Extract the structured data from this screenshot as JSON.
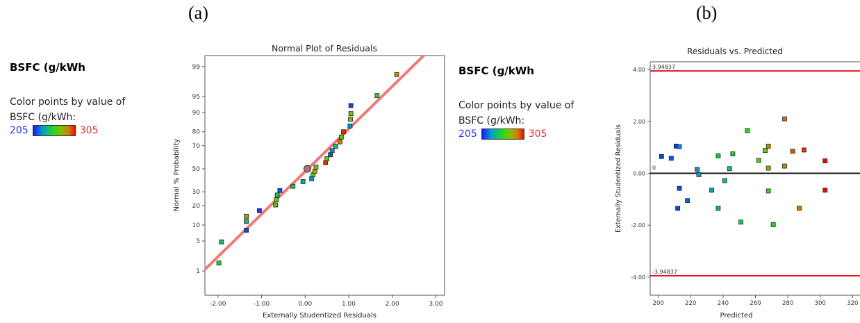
{
  "panel_labels": [
    "(a)",
    "(b)"
  ],
  "legend": {
    "title": "BSFC (g/kWh",
    "line1": "Color points by value of",
    "line2": "BSFC (g/kWh:",
    "min": "205",
    "max": "305"
  },
  "chart_data": [
    {
      "type": "scatter",
      "title": "Normal Plot of Residuals",
      "xlabel": "Externally Studentized Residuals",
      "ylabel": "Normal % Probability",
      "xlim": [
        -2.3,
        3.2
      ],
      "xticks": [
        "-2.00",
        "-1.00",
        "0.00",
        "1.00",
        "2.00",
        "3.00"
      ],
      "yticks": [
        "1",
        "5",
        "10",
        "20",
        "30",
        "50",
        "70",
        "80",
        "90",
        "95",
        "99"
      ],
      "y_scale": "normal-probability",
      "color_scale": {
        "min": 205,
        "max": 305
      },
      "fit_line": "normal reference line",
      "points": [
        {
          "x": -1.98,
          "y": 1.6,
          "c": 252
        },
        {
          "x": -1.92,
          "y": 4.8,
          "c": 240
        },
        {
          "x": -1.35,
          "y": 8.1,
          "c": 212
        },
        {
          "x": -1.35,
          "y": 11.5,
          "c": 238
        },
        {
          "x": -1.35,
          "y": 14.0,
          "c": 280
        },
        {
          "x": -1.05,
          "y": 17.0,
          "c": 210
        },
        {
          "x": -0.68,
          "y": 20.5,
          "c": 260
        },
        {
          "x": -0.66,
          "y": 24.0,
          "c": 270
        },
        {
          "x": -0.64,
          "y": 27.5,
          "c": 245
        },
        {
          "x": -0.58,
          "y": 31.0,
          "c": 215
        },
        {
          "x": -0.28,
          "y": 34.5,
          "c": 245
        },
        {
          "x": -0.05,
          "y": 38.5,
          "c": 230
        },
        {
          "x": 0.05,
          "y": 50.0,
          "c": 250
        },
        {
          "x": 0.15,
          "y": 41.0,
          "c": 225
        },
        {
          "x": 0.18,
          "y": 44.5,
          "c": 260
        },
        {
          "x": 0.22,
          "y": 47.5,
          "c": 280
        },
        {
          "x": 0.25,
          "y": 51.5,
          "c": 270
        },
        {
          "x": 0.47,
          "y": 55.5,
          "c": 300
        },
        {
          "x": 0.5,
          "y": 59.0,
          "c": 265
        },
        {
          "x": 0.58,
          "y": 62.5,
          "c": 215
        },
        {
          "x": 0.62,
          "y": 66.0,
          "c": 225
        },
        {
          "x": 0.7,
          "y": 69.5,
          "c": 240
        },
        {
          "x": 0.8,
          "y": 73.0,
          "c": 290
        },
        {
          "x": 0.83,
          "y": 76.5,
          "c": 260
        },
        {
          "x": 0.88,
          "y": 80.0,
          "c": 300
        },
        {
          "x": 1.03,
          "y": 83.5,
          "c": 225
        },
        {
          "x": 1.04,
          "y": 87.0,
          "c": 265
        },
        {
          "x": 1.05,
          "y": 89.5,
          "c": 272
        },
        {
          "x": 1.05,
          "y": 92.5,
          "c": 212
        },
        {
          "x": 1.65,
          "y": 95.2,
          "c": 256
        },
        {
          "x": 2.1,
          "y": 98.4,
          "c": 280
        }
      ]
    },
    {
      "type": "scatter",
      "title": "Residuals vs. Predicted",
      "xlabel": "Predicted",
      "ylabel": "Externally Studentized Residuals",
      "xlim": [
        195,
        328
      ],
      "ylim": [
        -4.7,
        4.3
      ],
      "xticks": [
        200,
        220,
        240,
        260,
        280,
        300,
        320
      ],
      "yticks": [
        {
          "v": 4.0,
          "label": "4.00"
        },
        {
          "v": 2.0,
          "label": "2.00"
        },
        {
          "v": 0.0,
          "label": "0.00"
        },
        {
          "v": -2.0,
          "label": "-2.00"
        },
        {
          "v": -4.0,
          "label": "-4.00"
        }
      ],
      "limit_lines": [
        {
          "v": 3.94837,
          "label": "3.94837"
        },
        {
          "v": -3.94837,
          "label": "-3.94837"
        }
      ],
      "zero_line": {
        "v": 0,
        "label": "0"
      },
      "color_scale": {
        "min": 205,
        "max": 305
      },
      "points": [
        {
          "x": 202,
          "y": 0.65,
          "c": 212
        },
        {
          "x": 208,
          "y": 0.58,
          "c": 215
        },
        {
          "x": 211,
          "y": 1.05,
          "c": 210
        },
        {
          "x": 212,
          "y": -1.35,
          "c": 212
        },
        {
          "x": 213,
          "y": 1.03,
          "c": 222
        },
        {
          "x": 213,
          "y": -0.58,
          "c": 212
        },
        {
          "x": 218,
          "y": -1.05,
          "c": 218
        },
        {
          "x": 224,
          "y": 0.15,
          "c": 225
        },
        {
          "x": 225,
          "y": -0.05,
          "c": 228
        },
        {
          "x": 233,
          "y": -0.65,
          "c": 232
        },
        {
          "x": 237,
          "y": 0.68,
          "c": 245
        },
        {
          "x": 237,
          "y": -1.35,
          "c": 236
        },
        {
          "x": 241,
          "y": -0.28,
          "c": 240
        },
        {
          "x": 244,
          "y": 0.18,
          "c": 242
        },
        {
          "x": 246,
          "y": 0.75,
          "c": 250
        },
        {
          "x": 251,
          "y": -1.88,
          "c": 245
        },
        {
          "x": 255,
          "y": 1.65,
          "c": 255
        },
        {
          "x": 262,
          "y": 0.5,
          "c": 262
        },
        {
          "x": 266,
          "y": 0.88,
          "c": 265
        },
        {
          "x": 268,
          "y": 1.05,
          "c": 285
        },
        {
          "x": 268,
          "y": 0.2,
          "c": 272
        },
        {
          "x": 268,
          "y": -0.68,
          "c": 258
        },
        {
          "x": 271,
          "y": -1.98,
          "c": 255
        },
        {
          "x": 278,
          "y": 2.1,
          "c": 290
        },
        {
          "x": 278,
          "y": 0.28,
          "c": 285
        },
        {
          "x": 283,
          "y": 0.85,
          "c": 295
        },
        {
          "x": 287,
          "y": -1.35,
          "c": 290
        },
        {
          "x": 290,
          "y": 0.9,
          "c": 300
        },
        {
          "x": 303,
          "y": 0.48,
          "c": 305
        },
        {
          "x": 303,
          "y": -0.65,
          "c": 305
        }
      ]
    }
  ]
}
